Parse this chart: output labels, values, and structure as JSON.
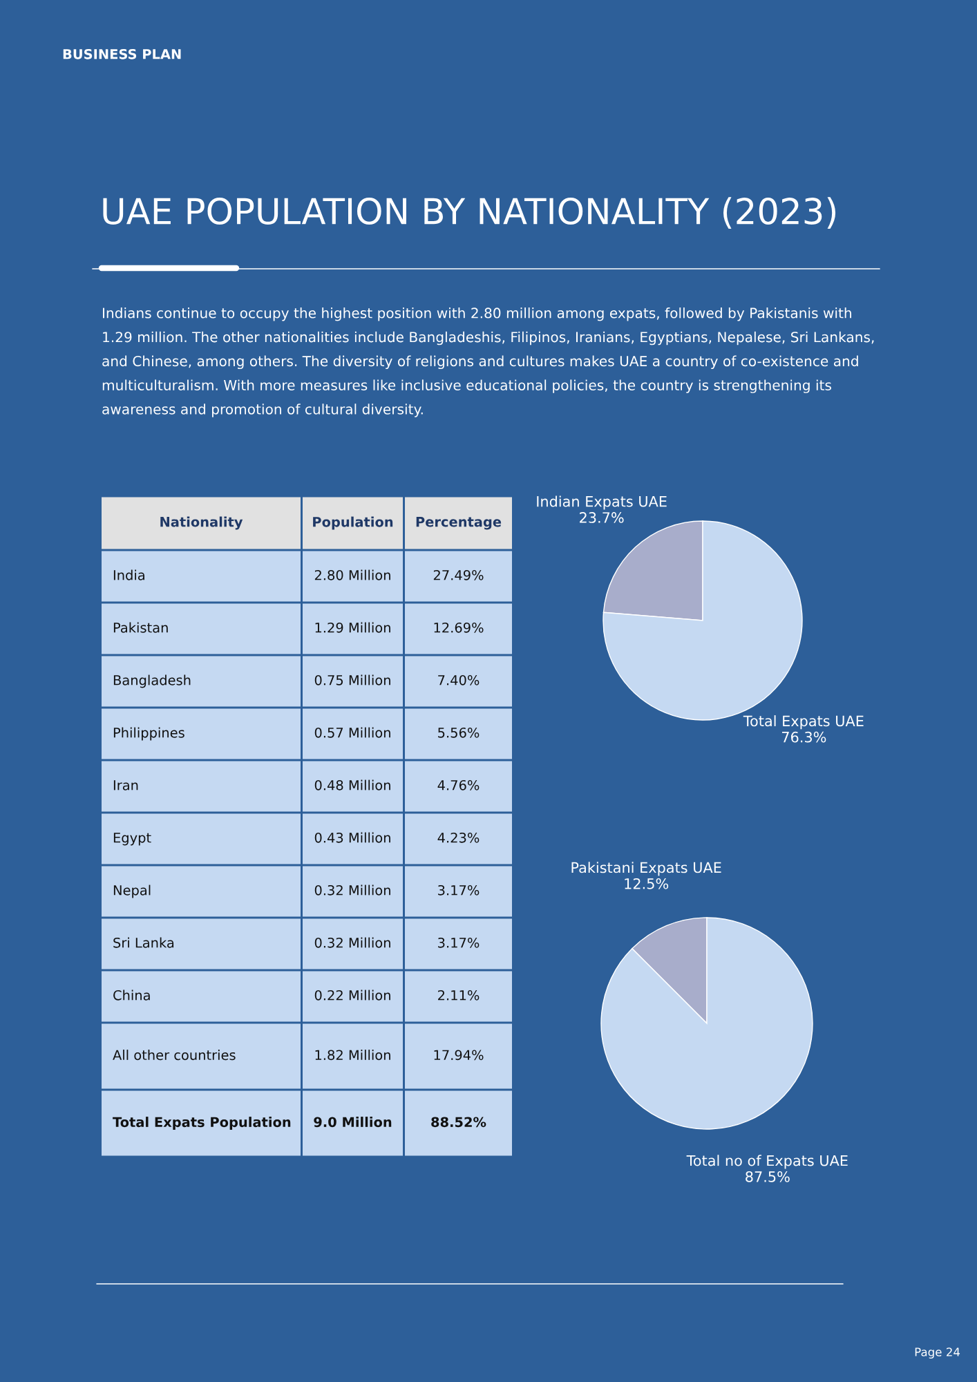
{
  "chart_data": [
    {
      "type": "other",
      "title": "UAE POPULATION BY NATIONALITY (2023)",
      "subtitle": "Indians continue to occupy the highest position with 2.80 million among expats, followed by Pakistanis with 1.29 million. The other nationalities include Bangladeshis, Filipinos, Iranians, Egyptians, Nepalese, Sri Lankans, and Chinese, among others. The diversity of religions and cultures makes UAE a country of co-existence and multiculturalism. With more measures like inclusive educational policies, the country is strengthening its awareness and promotion of cultural diversity.",
      "annotations": [
        "BUSINESS PLAN",
        "Page 24"
      ],
      "xlabel": "Nationality",
      "categories": [
        "India",
        "Pakistan",
        "Bangladesh",
        "Philippines",
        "Iran",
        "Egypt",
        "Nepal",
        "Sri Lanka",
        "China",
        "All other countries",
        "Total Expats Population"
      ],
      "series": [
        {
          "name": "Population",
          "values": [
            2.8,
            1.29,
            0.75,
            0.57,
            0.48,
            0.43,
            0.32,
            0.32,
            0.22,
            1.82,
            9.0
          ],
          "value_labels": [
            "2.80 Million",
            "1.29 Million",
            "0.75 Million",
            "0.57 Million",
            "0.48 Million",
            "0.43 Million",
            "0.32 Million",
            "0.32 Million",
            "0.22 Million",
            "1.82 Million",
            "9.0 Million"
          ]
        },
        {
          "name": "Percentage",
          "values": [
            27.49,
            12.69,
            7.4,
            5.56,
            4.76,
            4.23,
            3.17,
            3.17,
            2.11,
            17.94,
            88.52
          ],
          "value_labels": [
            "27.49%",
            "12.69%",
            "7.40%",
            "5.56%",
            "4.76%",
            "4.23%",
            "3.17%",
            "3.17%",
            "2.11%",
            "17.94%",
            "88.52%"
          ]
        }
      ]
    },
    {
      "type": "pie",
      "categories": [
        "Indian Expats UAE",
        "Total Expats UAE"
      ],
      "values": [
        23.7,
        76.3
      ],
      "value_labels": [
        "23.7%",
        "76.3%"
      ],
      "colors": [
        "#a8adcb",
        "#c5d9f2"
      ]
    },
    {
      "type": "pie",
      "categories": [
        "Pakistani Expats UAE",
        "Total no of Expats UAE"
      ],
      "values": [
        12.5,
        87.5
      ],
      "value_labels": [
        "12.5%",
        "87.5%"
      ],
      "colors": [
        "#a8adcb",
        "#c5d9f2"
      ]
    }
  ]
}
